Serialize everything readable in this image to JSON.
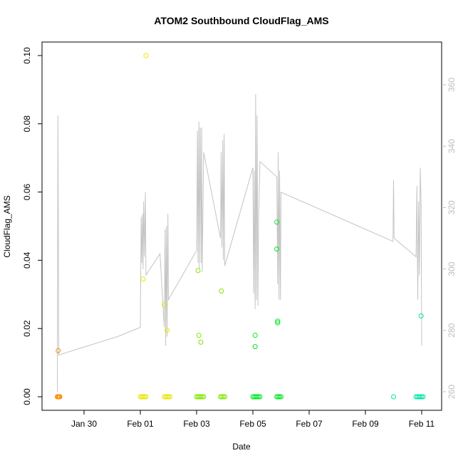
{
  "chart_data": {
    "type": "scatter",
    "title": "ATOM2 Southbound CloudFlag_AMS",
    "xlabel": "Date",
    "ylabel": "CloudFlag_AMS",
    "x_range_days": [
      -2.2,
      10.5
    ],
    "ylim": [
      -0.003,
      0.102
    ],
    "x_ticks": [
      {
        "label": "Jan 30",
        "day": -1
      },
      {
        "label": "Feb 01",
        "day": 1
      },
      {
        "label": "Feb 03",
        "day": 3
      },
      {
        "label": "Feb 05",
        "day": 5
      },
      {
        "label": "Feb 07",
        "day": 7
      },
      {
        "label": "Feb 09",
        "day": 9
      },
      {
        "label": "Feb 11",
        "day": 11
      }
    ],
    "y_ticks": [
      "0.00",
      "0.02",
      "0.04",
      "0.06",
      "0.08",
      "0.10"
    ],
    "y2_ticks": [
      "260",
      "280",
      "300",
      "320",
      "340",
      "360"
    ],
    "y2lim": [
      257,
      366
    ],
    "grid": false,
    "series": [
      {
        "color": "#ff8c00",
        "points": [
          [
            -1.95,
            0
          ],
          [
            -1.93,
            0
          ],
          [
            -1.9,
            0
          ],
          [
            -1.88,
            0
          ],
          [
            -1.86,
            0
          ],
          [
            -1.92,
            0.0135
          ]
        ]
      },
      {
        "color": "#e6e600",
        "points": [
          [
            1.0,
            0
          ],
          [
            1.05,
            0
          ],
          [
            1.1,
            0
          ],
          [
            1.15,
            0
          ],
          [
            1.2,
            0
          ],
          [
            1.85,
            0
          ],
          [
            1.9,
            0
          ],
          [
            1.95,
            0
          ],
          [
            2.0,
            0
          ],
          [
            2.05,
            0
          ],
          [
            1.2,
            0.1
          ],
          [
            1.1,
            0.0345
          ],
          [
            1.85,
            0.027
          ],
          [
            1.95,
            0.0195
          ]
        ]
      },
      {
        "color": "#80e600",
        "points": [
          [
            3.0,
            0
          ],
          [
            3.05,
            0
          ],
          [
            3.1,
            0
          ],
          [
            3.15,
            0
          ],
          [
            3.2,
            0
          ],
          [
            3.25,
            0
          ],
          [
            3.85,
            0
          ],
          [
            3.9,
            0
          ],
          [
            3.95,
            0
          ],
          [
            4.0,
            0
          ],
          [
            3.05,
            0.037
          ],
          [
            3.08,
            0.018
          ],
          [
            3.15,
            0.016
          ],
          [
            3.88,
            0.031
          ]
        ]
      },
      {
        "color": "#00e620",
        "points": [
          [
            5.0,
            0
          ],
          [
            5.05,
            0
          ],
          [
            5.1,
            0
          ],
          [
            5.15,
            0
          ],
          [
            5.2,
            0
          ],
          [
            5.25,
            0
          ],
          [
            5.85,
            0
          ],
          [
            5.9,
            0
          ],
          [
            5.95,
            0
          ],
          [
            6.0,
            0
          ],
          [
            5.08,
            0.018
          ],
          [
            5.08,
            0.0147
          ],
          [
            5.85,
            0.0512
          ],
          [
            5.85,
            0.0433
          ],
          [
            5.88,
            0.0222
          ],
          [
            5.88,
            0.0217
          ]
        ]
      },
      {
        "color": "#00e6a6",
        "points": [
          [
            10.0,
            0
          ],
          [
            10.8,
            0
          ],
          [
            10.85,
            0
          ],
          [
            10.9,
            0
          ],
          [
            10.95,
            0
          ],
          [
            11.0,
            0
          ],
          [
            11.05,
            0
          ],
          [
            10.98,
            0.0237
          ]
        ]
      }
    ],
    "secondary_line": {
      "color": "#c4c4c4",
      "points": [
        [
          -1.95,
          260
        ],
        [
          -1.93,
          350
        ],
        [
          -1.9,
          272
        ],
        [
          0.2,
          278
        ],
        [
          1.0,
          281
        ],
        [
          1.03,
          317
        ],
        [
          1.05,
          302
        ],
        [
          1.08,
          318
        ],
        [
          1.1,
          300
        ],
        [
          1.12,
          322
        ],
        [
          1.15,
          304
        ],
        [
          1.18,
          325
        ],
        [
          1.2,
          298
        ],
        [
          1.7,
          305
        ],
        [
          1.85,
          281
        ],
        [
          1.88,
          313
        ],
        [
          1.9,
          275
        ],
        [
          1.93,
          314
        ],
        [
          1.95,
          278
        ],
        [
          1.98,
          318
        ],
        [
          2.0,
          290
        ],
        [
          3.0,
          306
        ],
        [
          3.03,
          345
        ],
        [
          3.05,
          302
        ],
        [
          3.08,
          348
        ],
        [
          3.1,
          300
        ],
        [
          3.13,
          346
        ],
        [
          3.16,
          302
        ],
        [
          3.18,
          346
        ],
        [
          3.2,
          299
        ],
        [
          3.25,
          338
        ],
        [
          3.85,
          310
        ],
        [
          3.87,
          338
        ],
        [
          3.9,
          307
        ],
        [
          3.93,
          342
        ],
        [
          3.95,
          303
        ],
        [
          3.98,
          344
        ],
        [
          4.0,
          301
        ],
        [
          5.0,
          333
        ],
        [
          5.03,
          292
        ],
        [
          5.05,
          332
        ],
        [
          5.08,
          287
        ],
        [
          5.1,
          357
        ],
        [
          5.13,
          290
        ],
        [
          5.15,
          350
        ],
        [
          5.18,
          288
        ],
        [
          5.2,
          315
        ],
        [
          5.25,
          335
        ],
        [
          5.85,
          330
        ],
        [
          5.88,
          295
        ],
        [
          5.9,
          338
        ],
        [
          5.93,
          290
        ],
        [
          5.95,
          332
        ],
        [
          5.98,
          290
        ],
        [
          6.0,
          325
        ],
        [
          9.98,
          309
        ],
        [
          10.0,
          329
        ],
        [
          10.02,
          310
        ],
        [
          10.8,
          304
        ],
        [
          10.83,
          327
        ],
        [
          10.86,
          290
        ],
        [
          10.89,
          322
        ],
        [
          10.92,
          298
        ],
        [
          10.95,
          333
        ],
        [
          10.98,
          320
        ],
        [
          11.0,
          275
        ]
      ]
    }
  }
}
